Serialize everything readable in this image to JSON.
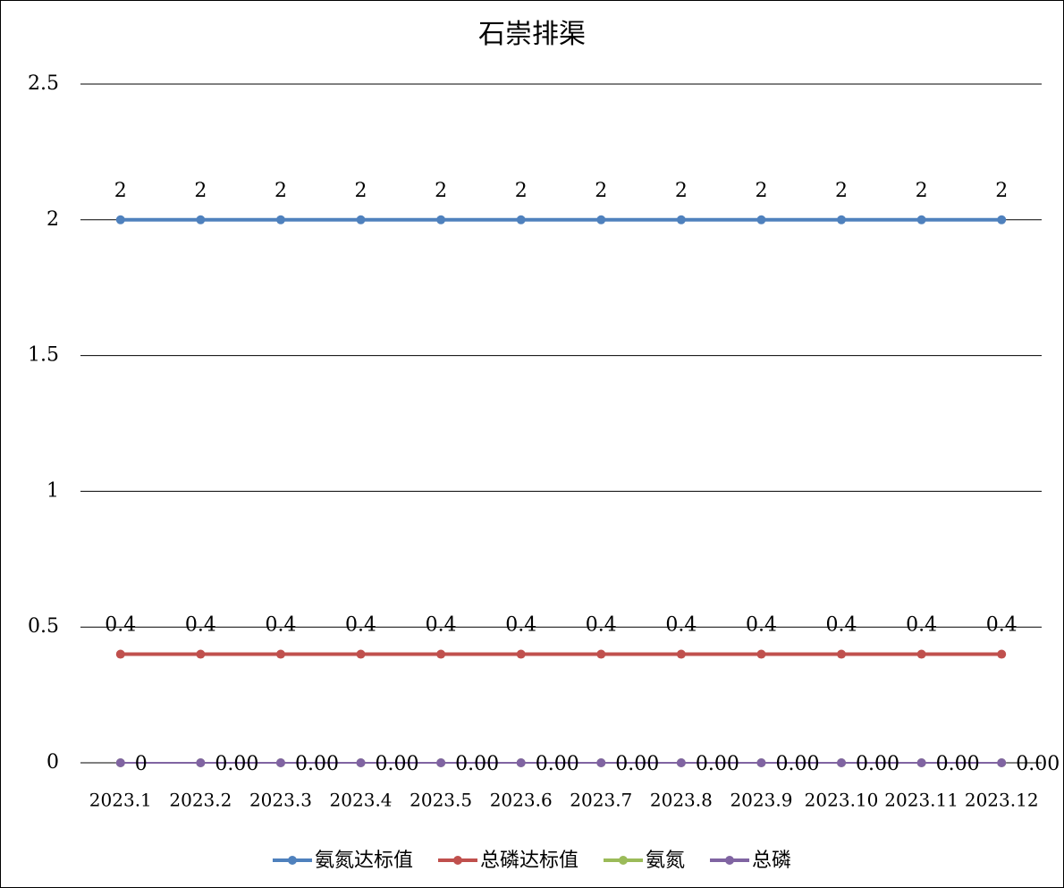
{
  "chart_data": {
    "type": "line",
    "title": "石崇排渠",
    "categories": [
      "2023.1",
      "2023.2",
      "2023.3",
      "2023.4",
      "2023.5",
      "2023.6",
      "2023.7",
      "2023.8",
      "2023.9",
      "2023.10",
      "2023.11",
      "2023.12"
    ],
    "series": [
      {
        "name": "氨氮达标值",
        "color": "#4f81bd",
        "values": [
          2,
          2,
          2,
          2,
          2,
          2,
          2,
          2,
          2,
          2,
          2,
          2
        ],
        "data_labels": "above"
      },
      {
        "name": "总磷达标值",
        "color": "#c0504d",
        "values": [
          0.4,
          0.4,
          0.4,
          0.4,
          0.4,
          0.4,
          0.4,
          0.4,
          0.4,
          0.4,
          0.4,
          0.4
        ],
        "data_labels": "above"
      },
      {
        "name": "氨氮",
        "color": "#9bbb59",
        "values": [
          0,
          0,
          0,
          0,
          0,
          0,
          0,
          0,
          0,
          0,
          0,
          0
        ]
      },
      {
        "name": "总磷",
        "color": "#8064a2",
        "values": [
          0,
          0,
          0,
          0,
          0,
          0,
          0,
          0,
          0,
          0,
          0,
          0
        ],
        "value_labels": [
          "0",
          "0.00",
          "0.00",
          "0.00",
          "0.00",
          "0.00",
          "0.00",
          "0.00",
          "0.00",
          "0.00",
          "0.00",
          "0.00"
        ],
        "data_labels": "right"
      }
    ],
    "ylim": [
      0,
      2.5
    ],
    "yticks": [
      0,
      0.5,
      1,
      1.5,
      2,
      2.5
    ],
    "grid": true,
    "legend": "bottom"
  }
}
